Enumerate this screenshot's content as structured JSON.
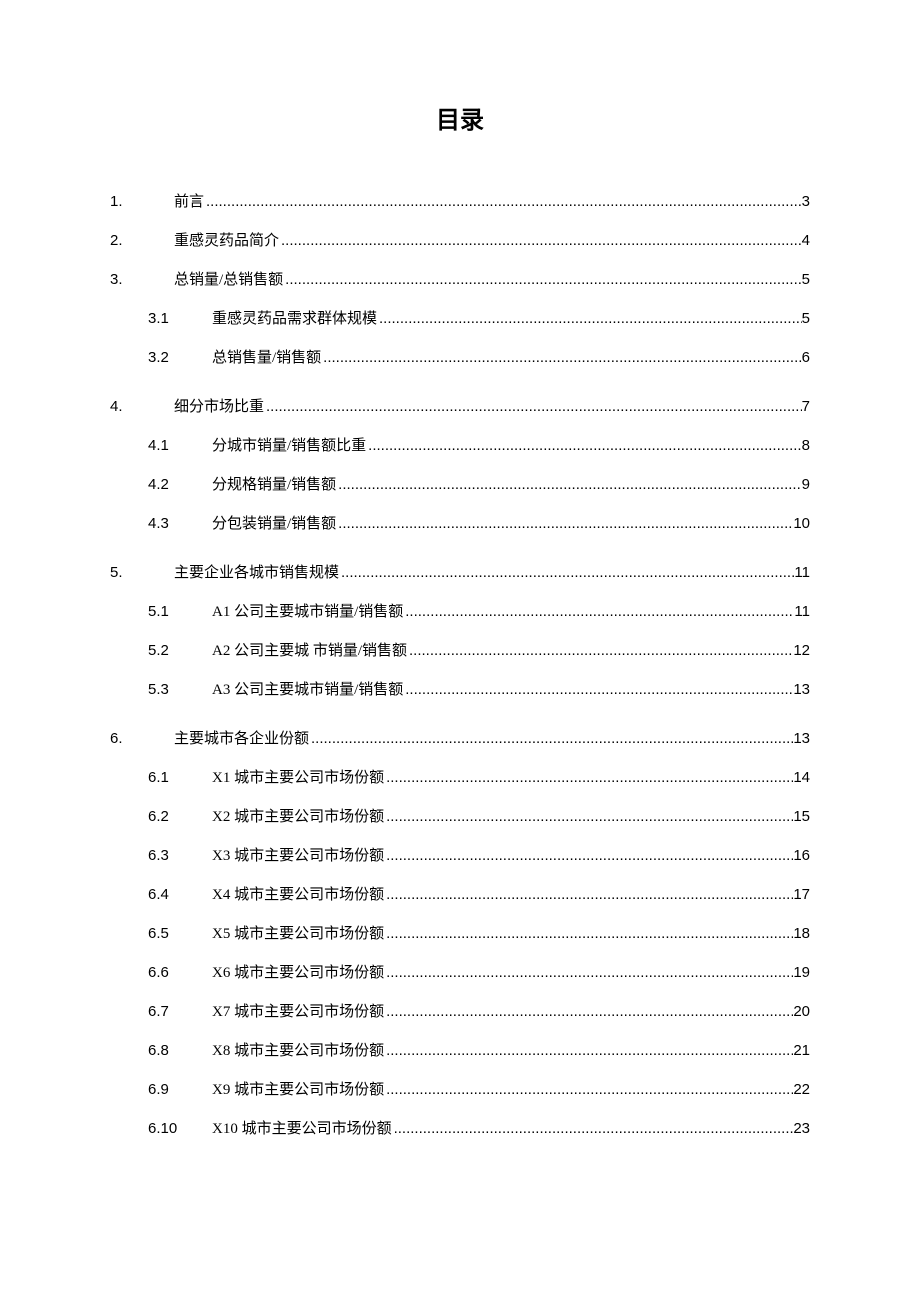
{
  "title": "目录",
  "entries": [
    {
      "level": 1,
      "number": "1.",
      "text": "前言",
      "page": "3",
      "break_after": false
    },
    {
      "level": 1,
      "number": "2.",
      "text": "重感灵药品简介",
      "page": "4",
      "break_after": false
    },
    {
      "level": 1,
      "number": "3.",
      "text": "总销量/总销售额",
      "page": "5",
      "break_after": false
    },
    {
      "level": 2,
      "number": "3.1",
      "text": "重感灵药品需求群体规模",
      "page": "5",
      "break_after": false
    },
    {
      "level": 2,
      "number": "3.2",
      "text": "总销售量/销售额",
      "page": "6",
      "break_after": true
    },
    {
      "level": 1,
      "number": "4.",
      "text": "细分市场比重",
      "page": "7",
      "break_after": false
    },
    {
      "level": 2,
      "number": "4.1",
      "text": "分城市销量/销售额比重",
      "page": "8",
      "break_after": false
    },
    {
      "level": 2,
      "number": "4.2",
      "text": "分规格销量/销售额",
      "page": "9",
      "break_after": false
    },
    {
      "level": 2,
      "number": "4.3",
      "text": "分包装销量/销售额",
      "page": "10",
      "break_after": true
    },
    {
      "level": 1,
      "number": "5.",
      "text": "主要企业各城市销售规模",
      "page": "11",
      "break_after": false
    },
    {
      "level": 2,
      "number": "5.1",
      "text": "A1 公司主要城市销量/销售额",
      "page": "11",
      "break_after": false
    },
    {
      "level": 2,
      "number": "5.2",
      "text": "A2 公司主要城 市销量/销售额",
      "page": "12",
      "break_after": false
    },
    {
      "level": 2,
      "number": "5.3",
      "text": "A3 公司主要城市销量/销售额",
      "page": "13",
      "break_after": true
    },
    {
      "level": 1,
      "number": "6.",
      "text": "主要城市各企业份额",
      "page": "13",
      "break_after": false
    },
    {
      "level": 2,
      "number": "6.1",
      "text": "X1 城市主要公司市场份额",
      "page": "14",
      "break_after": false
    },
    {
      "level": 2,
      "number": "6.2",
      "text": "X2 城市主要公司市场份额",
      "page": "15",
      "break_after": false
    },
    {
      "level": 2,
      "number": "6.3",
      "text": "X3 城市主要公司市场份额",
      "page": "16",
      "break_after": false
    },
    {
      "level": 2,
      "number": "6.4",
      "text": "X4 城市主要公司市场份额",
      "page": "17",
      "break_after": false
    },
    {
      "level": 2,
      "number": "6.5",
      "text": "X5 城市主要公司市场份额",
      "page": "18",
      "break_after": false
    },
    {
      "level": 2,
      "number": "6.6",
      "text": "X6 城市主要公司市场份额",
      "page": "19",
      "break_after": false
    },
    {
      "level": 2,
      "number": "6.7",
      "text": "X7 城市主要公司市场份额",
      "page": "20",
      "break_after": false
    },
    {
      "level": 2,
      "number": "6.8",
      "text": "X8 城市主要公司市场份额",
      "page": "21",
      "break_after": false
    },
    {
      "level": 2,
      "number": "6.9",
      "text": "X9 城市主要公司市场份额",
      "page": "22",
      "break_after": false
    },
    {
      "level": 2,
      "number": "6.10",
      "text": "X10 城市主要公司市场份额",
      "page": "23",
      "break_after": false
    }
  ]
}
